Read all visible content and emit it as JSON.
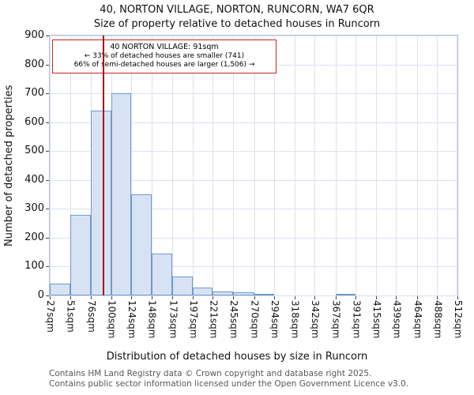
{
  "chart_data": {
    "type": "bar",
    "title": "40, NORTON VILLAGE, NORTON, RUNCORN, WA7 6QR",
    "subtitle": "Size of property relative to detached houses in Runcorn",
    "xlabel": "Distribution of detached houses by size in Runcorn",
    "ylabel": "Number of detached properties",
    "ylim": [
      0,
      900
    ],
    "ytick_step": 100,
    "grid": true,
    "legend": "none",
    "bin_edges_sqm": [
      27,
      51,
      76,
      100,
      124,
      148,
      173,
      197,
      221,
      245,
      270,
      294,
      318,
      342,
      367,
      391,
      415,
      439,
      464,
      488,
      512
    ],
    "x_tick_labels": [
      "27sqm",
      "51sqm",
      "76sqm",
      "100sqm",
      "124sqm",
      "148sqm",
      "173sqm",
      "197sqm",
      "221sqm",
      "245sqm",
      "270sqm",
      "294sqm",
      "318sqm",
      "342sqm",
      "367sqm",
      "391sqm",
      "415sqm",
      "439sqm",
      "464sqm",
      "488sqm",
      "512sqm"
    ],
    "values": [
      40,
      280,
      640,
      700,
      350,
      145,
      65,
      28,
      13,
      10,
      6,
      0,
      0,
      0,
      5,
      0,
      0,
      0,
      0,
      0
    ],
    "marker": {
      "value_sqm": 91,
      "color": "#aa1111"
    },
    "annotation": {
      "line1": "40 NORTON VILLAGE: 91sqm",
      "line2": "← 33% of detached houses are smaller (741)",
      "line3": "66% of semi-detached houses are larger (1,506) →",
      "border_color": "#cc2222"
    },
    "colors": {
      "bar_fill": "#d7e3f4",
      "bar_border": "#6d99cf",
      "grid": "#dbe1ef"
    }
  },
  "footer": {
    "line1": "Contains HM Land Registry data © Crown copyright and database right 2025.",
    "line2": "Contains public sector information licensed under the Open Government Licence v3.0."
  }
}
